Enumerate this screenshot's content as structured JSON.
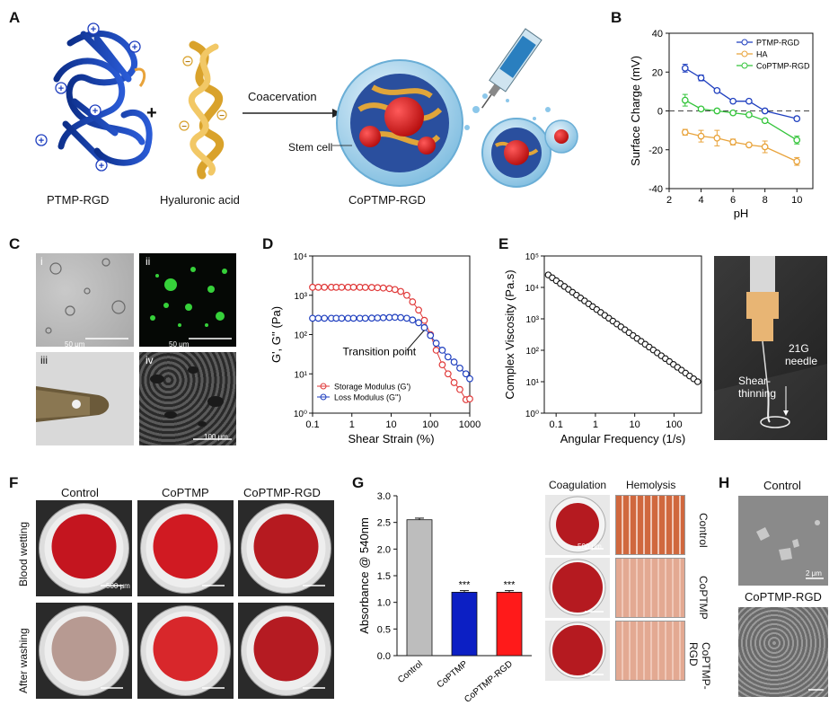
{
  "panels": {
    "A": "A",
    "B": "B",
    "C": "C",
    "D": "D",
    "E": "E",
    "F": "F",
    "G": "G",
    "H": "H"
  },
  "schematic": {
    "left_label": "PTMP-RGD",
    "middle_label": "Hyaluronic acid",
    "right_label": "CoPTMP-RGD",
    "arrow_label": "Coacervation",
    "stem_cell_label": "Stem cell",
    "plus": "+",
    "pos_sign": "+",
    "neg_sign": "−"
  },
  "panel_c": {
    "i": "i",
    "ii": "ii",
    "iii": "iii",
    "iv": "iv",
    "scale_i": "50 μm",
    "scale_ii": "50 μm",
    "scale_iv": "100 μm"
  },
  "panel_e_photo": {
    "needle": "21G\nneedle",
    "needle_l1": "21G",
    "needle_l2": "needle",
    "shear_l1": "Shear-",
    "shear_l2": "thinning"
  },
  "panel_f": {
    "col1": "Control",
    "col2": "CoPTMP",
    "col3": "CoPTMP-RGD",
    "row1": "Blood wetting",
    "row2": "After washing",
    "scale": "500 μm"
  },
  "panel_g_photos": {
    "col1": "Coagulation",
    "col2": "Hemolysis",
    "row1": "Control",
    "row2": "CoPTMP",
    "row3_l1": "CoPTMP-",
    "row3_l2": "RGD",
    "scale": "500 μm"
  },
  "panel_h": {
    "top": "Control",
    "bottom": "CoPTMP-RGD",
    "scale": "2 μm"
  },
  "colors": {
    "blue": "#1f3fbf",
    "orange": "#e8a33b",
    "green": "#33c43a",
    "red": "#e03a3a",
    "bar_gray": "#bdbdbd",
    "bar_blue": "#0c1fc4",
    "bar_red": "#ff1a1a"
  },
  "chart_data": [
    {
      "id": "B",
      "type": "line",
      "xlabel": "pH",
      "ylabel": "Surface Charge (mV)",
      "xlim": [
        2,
        11
      ],
      "ylim": [
        -40,
        40
      ],
      "xticks": [
        2,
        4,
        6,
        8,
        10
      ],
      "yticks": [
        -40,
        -20,
        0,
        20,
        40
      ],
      "legend": "top-right",
      "series": [
        {
          "name": "PTMP-RGD",
          "color": "#1f3fbf",
          "x": [
            3,
            4,
            5,
            6,
            7,
            8,
            10
          ],
          "y": [
            22,
            17,
            10.5,
            5,
            5,
            0,
            -4
          ],
          "err": [
            2,
            1.5,
            1,
            1,
            1,
            1,
            1
          ]
        },
        {
          "name": "HA",
          "color": "#e8a33b",
          "x": [
            3,
            4,
            5,
            6,
            7,
            8,
            10
          ],
          "y": [
            -11,
            -13,
            -14,
            -16,
            -17.5,
            -18.5,
            -26
          ],
          "err": [
            1.5,
            3,
            4,
            1.5,
            1,
            3,
            2
          ]
        },
        {
          "name": "CoPTMP-RGD",
          "color": "#33c43a",
          "x": [
            3,
            4,
            5,
            6,
            7,
            8,
            10
          ],
          "y": [
            5.5,
            1,
            0,
            -1,
            -2,
            -5,
            -15
          ],
          "err": [
            3,
            1,
            1,
            1,
            1,
            1,
            2
          ]
        }
      ]
    },
    {
      "id": "D",
      "type": "scatter",
      "log_x": true,
      "log_y": true,
      "xlabel": "Shear Strain (%)",
      "ylabel": "G', G'' (Pa)",
      "xlim": [
        0.1,
        1000
      ],
      "ylim": [
        1,
        10000
      ],
      "xticks": [
        "0.1",
        "1",
        "10",
        "100",
        "1000"
      ],
      "yticks": [
        "10⁰",
        "10¹",
        "10²",
        "10³",
        "10⁴"
      ],
      "annotation": "Transition point",
      "legend": "bottom-left",
      "series": [
        {
          "name": "Storage Modulus (G')",
          "color": "#e03a3a",
          "x": [
            0.1,
            0.14,
            0.2,
            0.3,
            0.4,
            0.55,
            0.8,
            1.1,
            1.6,
            2.2,
            3.2,
            4.5,
            6.3,
            9,
            12.5,
            17.5,
            25,
            35,
            50,
            70,
            100,
            140,
            200,
            280,
            400,
            560,
            800,
            1000
          ],
          "y": [
            1600,
            1600,
            1600,
            1600,
            1600,
            1600,
            1600,
            1600,
            1600,
            1590,
            1580,
            1560,
            1530,
            1480,
            1400,
            1250,
            1000,
            680,
            420,
            230,
            100,
            40,
            17,
            10,
            6,
            4,
            2.2,
            2.3
          ]
        },
        {
          "name": "Loss Modulus (G'')",
          "color": "#1f3fbf",
          "x": [
            0.1,
            0.14,
            0.2,
            0.3,
            0.4,
            0.55,
            0.8,
            1.1,
            1.6,
            2.2,
            3.2,
            4.5,
            6.3,
            9,
            12.5,
            17.5,
            25,
            35,
            50,
            70,
            100,
            140,
            200,
            280,
            400,
            560,
            800,
            1000
          ],
          "y": [
            260,
            260,
            260,
            260,
            260,
            260,
            260,
            260,
            260,
            260,
            262,
            265,
            268,
            272,
            275,
            270,
            260,
            235,
            200,
            150,
            95,
            60,
            40,
            27,
            20,
            14,
            10,
            7.5
          ]
        }
      ]
    },
    {
      "id": "E",
      "type": "scatter",
      "log_x": true,
      "log_y": true,
      "xlabel": "Angular Frequency (1/s)",
      "ylabel": "Complex Viscosity (Pa.s)",
      "xlim": [
        0.05,
        500
      ],
      "ylim": [
        1,
        100000
      ],
      "xticks": [
        "0.1",
        "1",
        "10",
        "100"
      ],
      "yticks": [
        "10⁰",
        "10¹",
        "10²",
        "10³",
        "10⁴",
        "10⁵"
      ],
      "series": [
        {
          "name": "",
          "color": "#111111",
          "x_range": [
            0.063,
            400
          ],
          "y_start": 25000,
          "y_end": 10,
          "n": 38
        }
      ]
    },
    {
      "id": "G",
      "type": "bar",
      "ylabel": "Absorbance @ 540nm",
      "categories": [
        "Control",
        "CoPTMP",
        "CoPTMP-RGD"
      ],
      "values": [
        2.55,
        1.19,
        1.19
      ],
      "err": [
        0.03,
        0.03,
        0.03
      ],
      "significance": [
        "",
        "***",
        "***"
      ],
      "ylim": [
        0,
        3.0
      ],
      "yticks": [
        "0.0",
        "0.5",
        "1.0",
        "1.5",
        "2.0",
        "2.5",
        "3.0"
      ],
      "colors": [
        "#bdbdbd",
        "#0c1fc4",
        "#ff1a1a"
      ]
    }
  ]
}
